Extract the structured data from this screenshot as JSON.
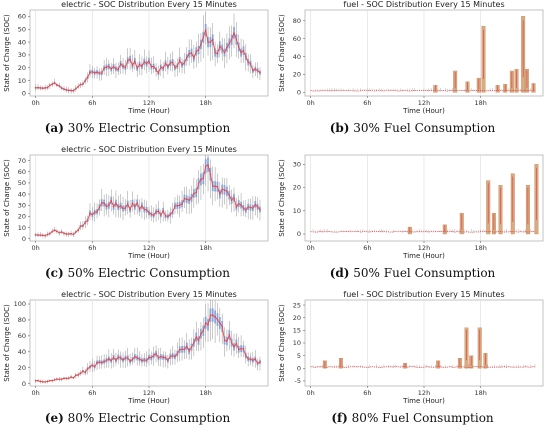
{
  "chart_data": [
    {
      "type": "line",
      "kind": "electric",
      "title": "electric - SOC Distribution Every 15 Minutes",
      "xlabel": "Time (Hour)",
      "ylabel": "State of Charge (SOC)",
      "xticks": [
        "0h",
        "6h",
        "12h",
        "18h"
      ],
      "yticks": [
        0,
        10,
        20,
        30,
        40,
        50,
        60
      ],
      "ylim": [
        -2,
        65
      ],
      "xlim": [
        -0.6,
        24.6
      ],
      "grid": "vertical",
      "caption": {
        "letter": "(a)",
        "text": "30% Electric Consumption"
      },
      "colors": {
        "line": "#e8474a",
        "box": "#7f9fd6",
        "whisker": "#8a8a8a"
      },
      "points": [
        [
          0,
          5
        ],
        [
          1,
          4
        ],
        [
          2,
          8
        ],
        [
          3,
          3
        ],
        [
          4,
          2
        ],
        [
          5,
          8
        ],
        [
          6,
          17
        ],
        [
          7,
          18
        ],
        [
          8,
          19
        ],
        [
          9,
          21
        ],
        [
          10,
          24
        ],
        [
          11,
          21
        ],
        [
          12,
          25
        ],
        [
          13,
          18
        ],
        [
          14,
          23
        ],
        [
          15,
          22
        ],
        [
          16,
          27
        ],
        [
          17,
          31
        ],
        [
          18,
          44
        ],
        [
          19,
          36
        ],
        [
          20,
          31
        ],
        [
          21,
          45
        ],
        [
          22,
          30
        ],
        [
          23,
          18
        ],
        [
          24,
          16
        ]
      ]
    },
    {
      "type": "bar",
      "kind": "fuel",
      "title": "fuel - SOC Distribution Every 15 Minutes",
      "xlabel": "Time (Hour)",
      "ylabel": "State of Charge (SOC)",
      "xticks": [
        "0h",
        "6h",
        "12h",
        "18h"
      ],
      "yticks": [
        0,
        20,
        40,
        60,
        80
      ],
      "ylim": [
        -4,
        92
      ],
      "xlim": [
        -0.6,
        24.6
      ],
      "grid": "vertical",
      "caption": {
        "letter": "(b)",
        "text": "30% Fuel Consumption"
      },
      "colors": {
        "bar": "#d4a273",
        "line": "#e8474a"
      },
      "baseline": 2,
      "bars": [
        [
          13.2,
          8
        ],
        [
          15.3,
          24
        ],
        [
          16.6,
          12
        ],
        [
          17.8,
          16
        ],
        [
          18.3,
          74
        ],
        [
          19.8,
          8
        ],
        [
          20.6,
          9
        ],
        [
          21.3,
          24
        ],
        [
          21.8,
          26
        ],
        [
          22.5,
          85
        ],
        [
          22.9,
          26
        ],
        [
          23.6,
          10
        ]
      ]
    },
    {
      "type": "line",
      "kind": "electric",
      "title": "electric - SOC Distribution Every 15 Minutes",
      "xlabel": "Time (Hour)",
      "ylabel": "State of Charge (SOC)",
      "xticks": [
        "0h",
        "6h",
        "12h",
        "18h"
      ],
      "yticks": [
        0,
        10,
        20,
        30,
        40,
        50,
        60,
        70
      ],
      "ylim": [
        -2,
        75
      ],
      "xlim": [
        -0.6,
        24.6
      ],
      "grid": "vertical",
      "caption": {
        "letter": "(c)",
        "text": "50% Electric Consumption"
      },
      "colors": {
        "line": "#e8474a",
        "box": "#7f9fd6",
        "whisker": "#8a8a8a"
      },
      "points": [
        [
          0,
          4
        ],
        [
          1,
          3
        ],
        [
          2,
          7
        ],
        [
          3,
          5
        ],
        [
          4,
          4
        ],
        [
          5,
          13
        ],
        [
          6,
          24
        ],
        [
          7,
          30
        ],
        [
          8,
          31
        ],
        [
          9,
          28
        ],
        [
          10,
          28
        ],
        [
          11,
          30
        ],
        [
          12,
          22
        ],
        [
          13,
          24
        ],
        [
          14,
          22
        ],
        [
          15,
          31
        ],
        [
          16,
          34
        ],
        [
          17,
          38
        ],
        [
          18,
          65
        ],
        [
          19,
          45
        ],
        [
          20,
          40
        ],
        [
          21,
          33
        ],
        [
          22,
          25
        ],
        [
          23,
          28
        ],
        [
          24,
          30
        ]
      ]
    },
    {
      "type": "bar",
      "kind": "fuel",
      "title": "",
      "xlabel": "Time (Hour)",
      "ylabel": "State of Charge (SOC)",
      "xticks": [
        "0h",
        "6h",
        "12h",
        "18h"
      ],
      "yticks": [
        0,
        10,
        20,
        30
      ],
      "ylim": [
        -3,
        34
      ],
      "xlim": [
        -0.6,
        24.6
      ],
      "grid": "vertical",
      "caption": {
        "letter": "(d)",
        "text": "50% Fuel Consumption"
      },
      "colors": {
        "bar": "#d4a273",
        "line": "#e8474a"
      },
      "baseline": 1,
      "bars": [
        [
          10.5,
          3
        ],
        [
          14.2,
          4
        ],
        [
          16.0,
          9
        ],
        [
          18.8,
          23
        ],
        [
          19.4,
          9
        ],
        [
          20.1,
          21
        ],
        [
          21.4,
          26
        ],
        [
          23.0,
          21
        ],
        [
          23.9,
          30
        ]
      ]
    },
    {
      "type": "line",
      "kind": "electric",
      "title": "electric - SOC Distribution Every 15 Minutes",
      "xlabel": "Time (Hour)",
      "ylabel": "State of Charge (SOC)",
      "xticks": [
        "0h",
        "6h",
        "12h",
        "18h"
      ],
      "yticks": [
        0,
        20,
        40,
        60,
        80,
        100
      ],
      "ylim": [
        -3,
        105
      ],
      "xlim": [
        -0.6,
        24.6
      ],
      "grid": "vertical",
      "caption": {
        "letter": "(e)",
        "text": "80% Electric Consumption"
      },
      "colors": {
        "line": "#e8474a",
        "box": "#7f9fd6",
        "whisker": "#8a8a8a"
      },
      "points": [
        [
          0,
          4
        ],
        [
          1,
          2
        ],
        [
          2,
          5
        ],
        [
          3,
          6
        ],
        [
          4,
          8
        ],
        [
          5,
          14
        ],
        [
          6,
          22
        ],
        [
          7,
          26
        ],
        [
          8,
          30
        ],
        [
          9,
          32
        ],
        [
          10,
          28
        ],
        [
          11,
          33
        ],
        [
          12,
          30
        ],
        [
          13,
          35
        ],
        [
          14,
          32
        ],
        [
          15,
          40
        ],
        [
          16,
          45
        ],
        [
          17,
          52
        ],
        [
          18,
          68
        ],
        [
          19,
          88
        ],
        [
          20,
          60
        ],
        [
          21,
          50
        ],
        [
          22,
          40
        ],
        [
          23,
          30
        ],
        [
          24,
          25
        ]
      ]
    },
    {
      "type": "bar",
      "kind": "fuel",
      "title": "fuel - SOC Distribution Every 15 Minutes",
      "xlabel": "Time (Hour)",
      "ylabel": "State of Charge (SOC)",
      "xticks": [
        "0h",
        "6h",
        "12h",
        "18h"
      ],
      "yticks": [
        -5,
        0,
        5,
        10,
        15,
        20,
        25
      ],
      "ylim": [
        -7,
        27
      ],
      "xlim": [
        -0.6,
        24.6
      ],
      "grid": "vertical",
      "caption": {
        "letter": "(f)",
        "text": "80% Fuel Consumption"
      },
      "colors": {
        "bar": "#d4a273",
        "line": "#e8474a"
      },
      "baseline": 0.5,
      "bars": [
        [
          1.5,
          3
        ],
        [
          3.2,
          4
        ],
        [
          10.0,
          2
        ],
        [
          13.5,
          3
        ],
        [
          15.8,
          4
        ],
        [
          16.5,
          16
        ],
        [
          17.0,
          5
        ],
        [
          17.9,
          16
        ],
        [
          18.5,
          6
        ]
      ]
    }
  ]
}
